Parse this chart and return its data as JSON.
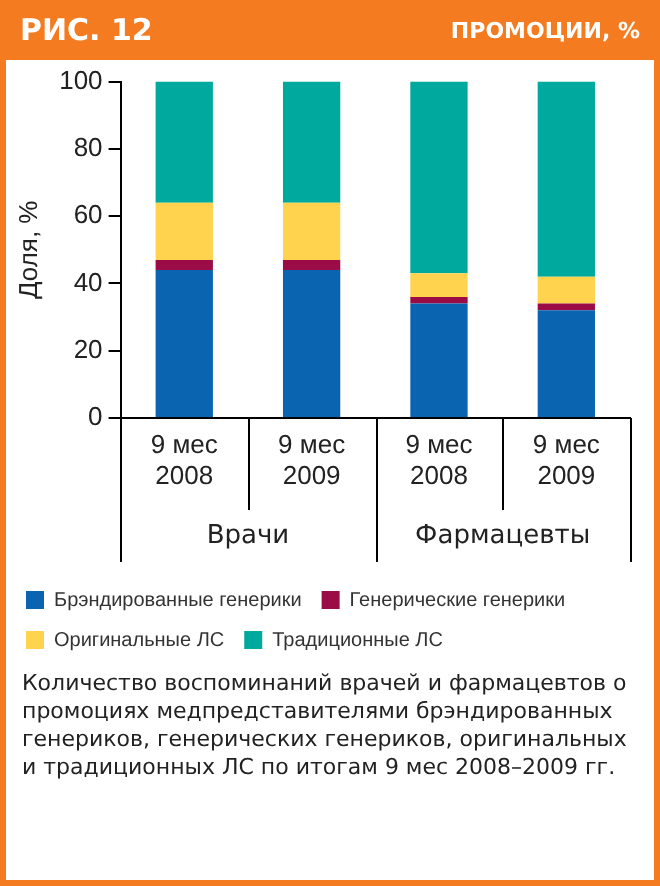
{
  "chart_data": {
    "type": "bar",
    "title": "РИС. 12",
    "subtitle": "ПРОМОЦИИ, %",
    "ylabel": "Доля, %",
    "categories": [
      "9 мес 2008",
      "9 мес 2009",
      "9 мес 2008",
      "9 мес 2009"
    ],
    "series": [
      {
        "name": "Брэндированные генерики",
        "color": "#0a64b0",
        "values": [
          44,
          44,
          34,
          32
        ]
      },
      {
        "name": "Генерические генерики",
        "color": "#9b0b45",
        "values": [
          3,
          3,
          2,
          2
        ]
      },
      {
        "name": "Оригинальные ЛС",
        "color": "#ffd34e",
        "values": [
          17,
          17,
          7,
          8
        ]
      },
      {
        "name": "Традиционные ЛС",
        "color": "#00a99d",
        "values": [
          36,
          36,
          57,
          58
        ]
      }
    ],
    "stacked": true,
    "ylim": [
      0,
      100
    ],
    "yticks": [
      0,
      20,
      40,
      60,
      80,
      100
    ],
    "grid": false,
    "legend": "bottom",
    "annotations": [
      "Врачи",
      "Фармацевты",
      "Количество воспоминаний врачей и фармацевтов о промоциях медпредставителями брэндированных генериков, генерических генериков, оригинальных и традиционных ЛС по итогам 9 мес 2008–2009 гг."
    ]
  }
}
